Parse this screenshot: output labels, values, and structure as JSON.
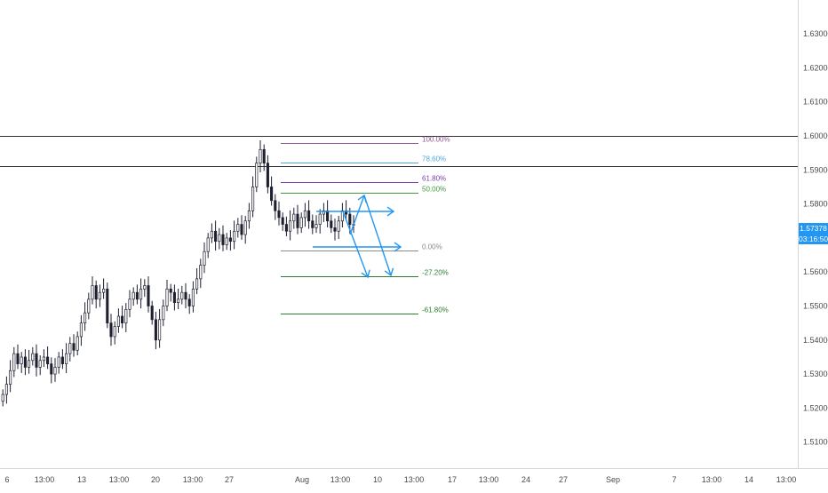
{
  "chart_data": {
    "type": "candlestick",
    "y_axis": {
      "ticks": [
        "1.63000",
        "1.62000",
        "1.61000",
        "1.60000",
        "1.59000",
        "1.58000",
        "1.56000",
        "1.55000",
        "1.54000",
        "1.53000",
        "1.52000",
        "1.51000"
      ],
      "ylim": [
        1.505,
        1.637
      ]
    },
    "x_axis": {
      "ticks": [
        "6",
        "13:00",
        "13",
        "13:00",
        "20",
        "13:00",
        "27",
        "Aug",
        "13:00",
        "10",
        "13:00",
        "17",
        "13:00",
        "24",
        "27",
        "Sep",
        "7",
        "13:00",
        "14",
        "13:00"
      ]
    },
    "current_price": "1.57378",
    "countdown": "03:16:50",
    "horizontal_levels": [
      1.6,
      1.591
    ],
    "fibonacci": [
      {
        "label": "100.00%",
        "price": 1.598,
        "color": "#8c5a91"
      },
      {
        "label": "78.60%",
        "price": 1.5921,
        "color": "#4fa8d8"
      },
      {
        "label": "61.80%",
        "price": 1.5864,
        "color": "#7a3ea8"
      },
      {
        "label": "50.00%",
        "price": 1.5834,
        "color": "#3f9a3f"
      },
      {
        "label": "0.00%",
        "price": 1.5663,
        "color": "#8a8a8a"
      },
      {
        "label": "-27.20%",
        "price": 1.5587,
        "color": "#2e7d32"
      },
      {
        "label": "-61.80%",
        "price": 1.5478,
        "color": "#2e7d32"
      }
    ],
    "candles_close": [
      1.524,
      1.527,
      1.531,
      1.536,
      1.533,
      1.535,
      1.532,
      1.534,
      1.536,
      1.532,
      1.534,
      1.535,
      1.533,
      1.53,
      1.532,
      1.535,
      1.533,
      1.536,
      1.539,
      1.537,
      1.541,
      1.545,
      1.548,
      1.552,
      1.556,
      1.552,
      1.554,
      1.555,
      1.545,
      1.541,
      1.544,
      1.547,
      1.545,
      1.549,
      1.552,
      1.554,
      1.552,
      1.555,
      1.556,
      1.55,
      1.546,
      1.54,
      1.546,
      1.55,
      1.555,
      1.554,
      1.551,
      1.552,
      1.554,
      1.552,
      1.55,
      1.555,
      1.558,
      1.562,
      1.566,
      1.57,
      1.572,
      1.569,
      1.571,
      1.568,
      1.57,
      1.569,
      1.572,
      1.574,
      1.571,
      1.575,
      1.578,
      1.585,
      1.592,
      1.596,
      1.592,
      1.585,
      1.581,
      1.578,
      1.576,
      1.574,
      1.572,
      1.575,
      1.577,
      1.573,
      1.576,
      1.578,
      1.575,
      1.573,
      1.574,
      1.577,
      1.578,
      1.575,
      1.573,
      1.572,
      1.575,
      1.578,
      1.577,
      1.574,
      1.5738
    ],
    "arrow_color": "#2196f3"
  }
}
